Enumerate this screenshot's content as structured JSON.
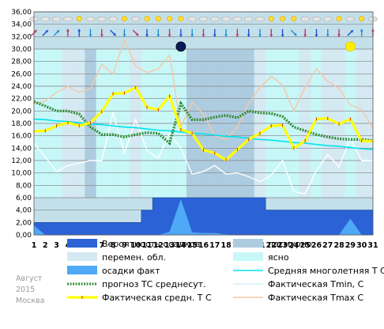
{
  "meta": {
    "month": "Август",
    "year": "2015",
    "city": "Москва"
  },
  "colors": {
    "plot_bg": "#c3e0ea",
    "clear": "#c8f7f8",
    "variable": "#d5e9f3",
    "overcast": "#aecce0",
    "precip_prob": "#2b63d6",
    "precip_actual": "#4ea9f7",
    "forecast": "#1f7a1f",
    "clim_mean": "#00e2ee",
    "tmin": "#d6f4f8",
    "tmax": "#f6c7a5",
    "actual_mean": "#ffff00"
  },
  "chart_data": {
    "type": "line",
    "x": [
      1,
      2,
      3,
      4,
      5,
      6,
      7,
      8,
      9,
      10,
      11,
      12,
      13,
      14,
      15,
      16,
      17,
      18,
      19,
      20,
      21,
      22,
      23,
      24,
      25,
      26,
      27,
      28,
      29,
      30,
      31
    ],
    "ylim": [
      0,
      36
    ],
    "yticks": [
      "0,00",
      "2,00",
      "4,00",
      "6,00",
      "8,00",
      "10,00",
      "12,00",
      "14,00",
      "16,00",
      "18,00",
      "20,00",
      "22,00",
      "24,00",
      "26,00",
      "28,00",
      "30,00",
      "32,00",
      "34,00",
      "36,00"
    ],
    "sky_days": [
      "clear",
      "clear",
      "clear",
      "variable",
      "variable",
      "overcast",
      "clear",
      "clear",
      "clear",
      "variable",
      "clear",
      "clear",
      "clear",
      "clear",
      "overcast",
      "overcast",
      "overcast",
      "overcast",
      "overcast",
      "overcast",
      "variable",
      "clear",
      "clear",
      "clear",
      "variable",
      "clear",
      "variable",
      "variable",
      "clear",
      "variable",
      "variable"
    ],
    "moon_phases": [
      {
        "day": 14,
        "phase": "new",
        "value": 30.4
      },
      {
        "day": 29,
        "phase": "full",
        "value": 30.4
      }
    ],
    "series": [
      {
        "key": "precip_prob",
        "name": "Вероятность осадков",
        "style": "area",
        "values": [
          2,
          2,
          2,
          2,
          2,
          2,
          2,
          2,
          2,
          2,
          4,
          6,
          6,
          6,
          6,
          6,
          6,
          6,
          6,
          6,
          6,
          4,
          4,
          4,
          4,
          4,
          4,
          4,
          4,
          4,
          4
        ]
      },
      {
        "key": "precip_actual",
        "name": "осадки факт",
        "style": "area",
        "values": [
          1.5,
          0,
          0,
          0,
          0,
          0,
          0,
          0,
          0,
          0,
          0,
          0,
          0.5,
          5.8,
          0.4,
          0.3,
          0.3,
          0.1,
          0,
          0,
          0,
          0,
          0,
          0,
          0,
          0,
          0,
          0,
          2.6,
          0,
          0
        ]
      },
      {
        "key": "tmax",
        "name": "Фактическая Tmax C",
        "style": "line",
        "values": [
          21.2,
          21.6,
          23.0,
          24.0,
          23.0,
          23.6,
          27.5,
          26.0,
          31.4,
          27.2,
          26.2,
          26.8,
          29.0,
          17.4,
          21.4,
          19.5,
          16.0,
          15.4,
          17.4,
          21.2,
          23.8,
          25.6,
          24.2,
          20.0,
          23.8,
          26.8,
          24.8,
          23.6,
          21.0,
          20.2,
          17.2
        ]
      },
      {
        "key": "tmin",
        "name": "Фактическая Tmin, C",
        "style": "line",
        "values": [
          14.8,
          12.6,
          10.2,
          11.2,
          11.6,
          12.0,
          12.0,
          19.8,
          13.2,
          18.6,
          13.6,
          12.4,
          16.4,
          14.0,
          9.8,
          10.2,
          11.2,
          9.8,
          10.0,
          9.4,
          8.6,
          9.6,
          12.0,
          7.0,
          6.6,
          10.4,
          13.0,
          11.0,
          15.6,
          12.0,
          12.0
        ]
      },
      {
        "key": "clim_mean",
        "name": "Средняя многолетняя Т С",
        "style": "line",
        "values": [
          18.7,
          18.6,
          18.4,
          18.3,
          18.1,
          17.9,
          17.8,
          17.6,
          17.4,
          17.3,
          17.1,
          16.9,
          16.8,
          16.6,
          16.4,
          16.3,
          16.1,
          15.9,
          15.8,
          15.6,
          15.4,
          15.3,
          15.1,
          14.9,
          14.8,
          14.6,
          14.4,
          14.3,
          14.1,
          13.9,
          13.8
        ]
      },
      {
        "key": "forecast",
        "name": "прогноз ТС среднесут.",
        "style": "dotted",
        "values": [
          21.5,
          20.8,
          20.0,
          20.0,
          19.5,
          17.4,
          16.2,
          16.2,
          15.8,
          16.2,
          16.5,
          16.4,
          14.8,
          21.2,
          18.6,
          18.6,
          19.0,
          19.3,
          18.9,
          20.0,
          19.7,
          19.6,
          19.1,
          17.4,
          16.8,
          16.2,
          15.8,
          15.5,
          15.4,
          15.4,
          15.2
        ]
      },
      {
        "key": "actual_mean",
        "name": "Фактическая средн. Т С",
        "style": "thick",
        "values": [
          16.7,
          16.8,
          17.6,
          18.1,
          17.6,
          18.1,
          19.9,
          22.8,
          22.9,
          23.8,
          20.6,
          20.2,
          22.4,
          17.0,
          16.4,
          13.7,
          13.2,
          12.1,
          13.8,
          15.4,
          16.4,
          17.6,
          17.7,
          14.0,
          15.2,
          18.7,
          18.8,
          17.9,
          18.7,
          15.2,
          15.1
        ]
      }
    ],
    "legend": {
      "placement": "bottom",
      "entries": [
        {
          "label": "Вероятность осадков",
          "kind": "box",
          "color_key": "precip_prob"
        },
        {
          "label": "пасмурно",
          "kind": "box",
          "color_key": "overcast"
        },
        {
          "label": "перемен. обл.",
          "kind": "box",
          "color_key": "variable"
        },
        {
          "label": "ясно",
          "kind": "box",
          "color_key": "clear"
        },
        {
          "label": "осадки факт",
          "kind": "box",
          "color_key": "precip_actual"
        },
        {
          "label": "Средняя многолетняя Т С",
          "kind": "line",
          "color_key": "clim_mean"
        },
        {
          "label": "прогноз ТС среднесут.",
          "kind": "dotted",
          "color_key": "forecast"
        },
        {
          "label": "Фактическая Tmin, C",
          "kind": "line",
          "color_key": "tmin"
        },
        {
          "label": "Фактическая средн. Т С",
          "kind": "thick",
          "color_key": "actual_mean"
        },
        {
          "label": "Фактическая Tmax C",
          "kind": "line",
          "color_key": "tmax"
        }
      ]
    },
    "weather_icons": {
      "sun": [
        5,
        9,
        11,
        12,
        13,
        14,
        22,
        23,
        24,
        28,
        30
      ],
      "cloud": [
        1,
        2,
        3,
        4,
        6,
        7,
        8,
        10,
        15,
        16,
        17,
        18,
        19,
        20,
        21,
        25,
        26,
        27,
        29,
        31
      ],
      "wind_arrows": [
        "up-right",
        "up-right",
        "up-right",
        "up",
        "up",
        "down",
        "down",
        "down-right",
        "down",
        "down-right",
        "down",
        "down",
        "down",
        "down",
        "down",
        "down",
        "down",
        "down",
        "down",
        "down",
        "down",
        "down",
        "down",
        "down-right",
        "down",
        "down",
        "down",
        "down",
        "up-right",
        "up",
        "up"
      ]
    }
  }
}
